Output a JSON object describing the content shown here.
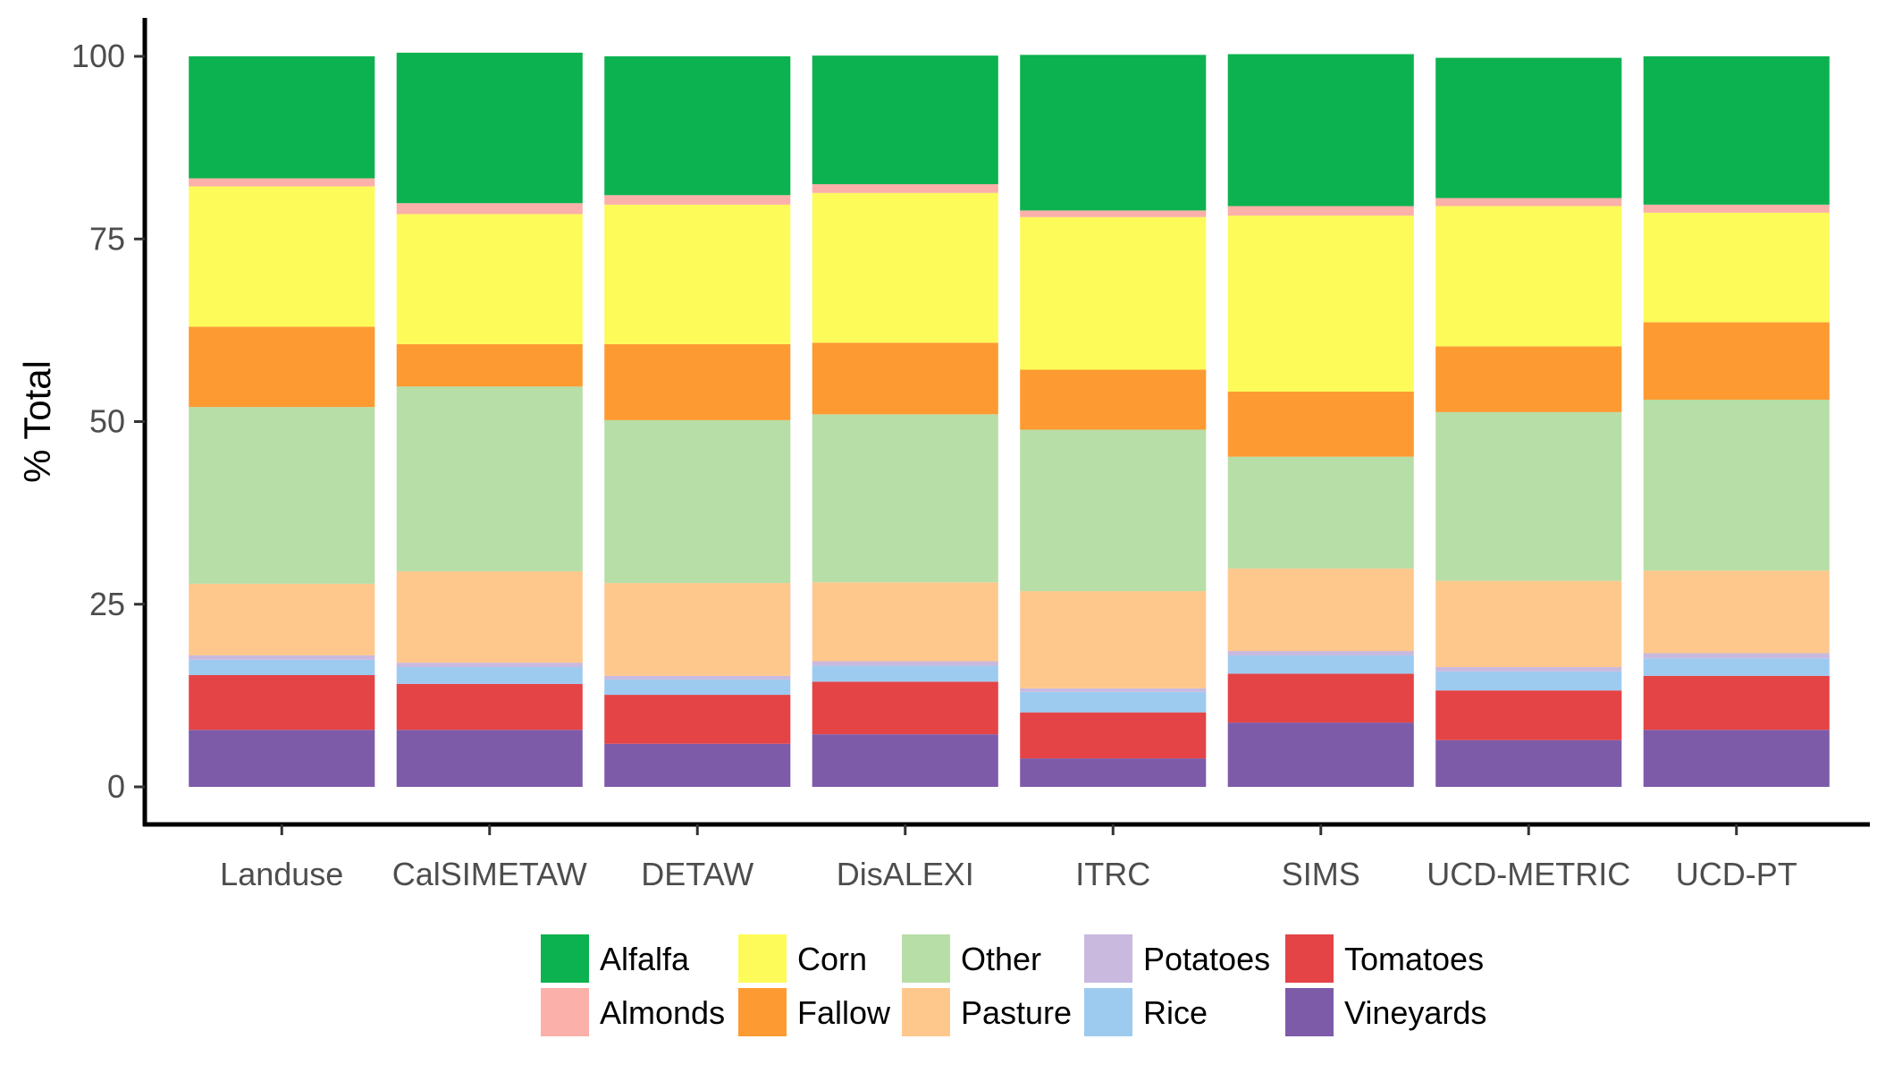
{
  "chart_data": {
    "type": "bar",
    "stacked": true,
    "title": "",
    "xlabel": "",
    "ylabel": "% Total",
    "ylim": [
      0,
      100
    ],
    "yticks": [
      0,
      25,
      50,
      75,
      100
    ],
    "grid": false,
    "legend_position": "bottom",
    "categories": [
      "Landuse",
      "CalSIMETAW",
      "DETAW",
      "DisALEXI",
      "ITRC",
      "SIMS",
      "UCD-METRIC",
      "UCD-PT"
    ],
    "stack_order_bottom_to_top": [
      "Vineyards",
      "Tomatoes",
      "Rice",
      "Potatoes",
      "Pasture",
      "Other",
      "Fallow",
      "Corn",
      "Almonds",
      "Alfalfa"
    ],
    "series": [
      {
        "name": "Alfalfa",
        "color": "#0cb24f",
        "values": [
          16.7,
          20.6,
          19.0,
          17.6,
          21.3,
          20.8,
          19.2,
          20.3
        ]
      },
      {
        "name": "Almonds",
        "color": "#fbb0aa",
        "values": [
          1.1,
          1.5,
          1.3,
          1.2,
          0.9,
          1.3,
          1.1,
          1.1
        ]
      },
      {
        "name": "Corn",
        "color": "#fdfb5a",
        "values": [
          19.2,
          17.8,
          19.1,
          20.5,
          20.9,
          24.1,
          19.2,
          15.0
        ]
      },
      {
        "name": "Fallow",
        "color": "#fd9a31",
        "values": [
          11.0,
          5.8,
          10.4,
          9.8,
          8.2,
          8.9,
          9.0,
          10.6
        ]
      },
      {
        "name": "Other",
        "color": "#b7dea7",
        "values": [
          24.2,
          25.3,
          22.3,
          23.0,
          22.1,
          15.3,
          23.1,
          23.4
        ]
      },
      {
        "name": "Pasture",
        "color": "#fec88d",
        "values": [
          9.8,
          12.5,
          12.7,
          10.8,
          13.3,
          11.3,
          11.8,
          11.3
        ]
      },
      {
        "name": "Potatoes",
        "color": "#c9b9df",
        "values": [
          0.6,
          0.6,
          0.5,
          0.6,
          0.5,
          0.6,
          0.6,
          0.7
        ]
      },
      {
        "name": "Rice",
        "color": "#9dcbef",
        "values": [
          2.1,
          2.3,
          2.1,
          2.2,
          2.8,
          2.5,
          2.6,
          2.4
        ]
      },
      {
        "name": "Tomatoes",
        "color": "#e44446",
        "values": [
          7.5,
          6.3,
          6.7,
          7.2,
          6.3,
          6.7,
          6.8,
          7.4
        ]
      },
      {
        "name": "Vineyards",
        "color": "#7d5ba9",
        "values": [
          7.8,
          7.8,
          5.9,
          7.2,
          3.9,
          8.8,
          6.4,
          7.8
        ]
      }
    ]
  }
}
